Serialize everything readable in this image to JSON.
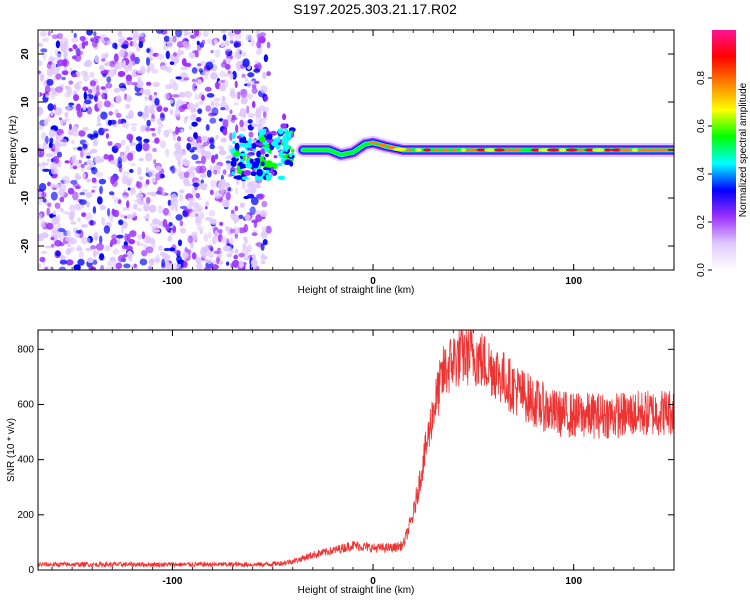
{
  "title": "S197.2025.303.21.17.R02",
  "chart_data": [
    {
      "type": "heatmap",
      "name": "spectrogram",
      "xlabel": "Height of straight line (km)",
      "ylabel": "Frequency (Hz)",
      "xlim": [
        -167,
        150
      ],
      "ylim": [
        -25,
        25
      ],
      "xticks": [
        -100,
        0,
        100
      ],
      "yticks": [
        -20,
        -10,
        0,
        10,
        20
      ],
      "colorbar": {
        "label": "Normalized spectral amplitude",
        "range": [
          0,
          1
        ],
        "ticks": [
          "0.0",
          "0.2",
          "0.4",
          "0.6",
          "0.8"
        ],
        "tick_values": [
          0.0,
          0.2,
          0.4,
          0.6,
          0.8
        ],
        "colors": [
          "#ffffff",
          "#e0c8ff",
          "#9b30ff",
          "#0000ff",
          "#00ffff",
          "#00ff00",
          "#ffff00",
          "#ff8000",
          "#ff0000",
          "#ff1493"
        ]
      },
      "noise_region_x": [
        -167,
        -52
      ],
      "transition_x": [
        -70,
        -40
      ],
      "signal_trace": {
        "x": [
          -35,
          -28,
          -22,
          -16,
          -10,
          -4,
          0,
          6,
          15,
          30,
          50,
          70,
          90,
          110,
          130,
          150
        ],
        "freq": [
          0,
          0,
          0,
          -1,
          -0.5,
          1.2,
          1.5,
          0.8,
          0,
          0,
          0,
          0,
          0,
          0,
          0,
          0
        ]
      }
    },
    {
      "type": "line",
      "name": "snr",
      "xlabel": "Height of straight line (km)",
      "ylabel": "SNR (10 * v/v)",
      "xlim": [
        -167,
        150
      ],
      "ylim": [
        0,
        870
      ],
      "xticks": [
        -100,
        0,
        100
      ],
      "yticks": [
        0,
        200,
        400,
        600,
        800
      ],
      "color": "#ee3333",
      "envelope": {
        "x": [
          -167,
          -120,
          -80,
          -55,
          -45,
          -38,
          -30,
          -20,
          -10,
          -5,
          0,
          10,
          15,
          20,
          25,
          30,
          35,
          40,
          45,
          50,
          60,
          70,
          80,
          90,
          100,
          120,
          150
        ],
        "y": [
          20,
          20,
          20,
          20,
          25,
          35,
          55,
          70,
          90,
          85,
          80,
          80,
          90,
          200,
          390,
          580,
          710,
          760,
          780,
          780,
          730,
          660,
          610,
          570,
          560,
          560,
          575
        ]
      },
      "noise_amplitude": 0.14
    }
  ]
}
